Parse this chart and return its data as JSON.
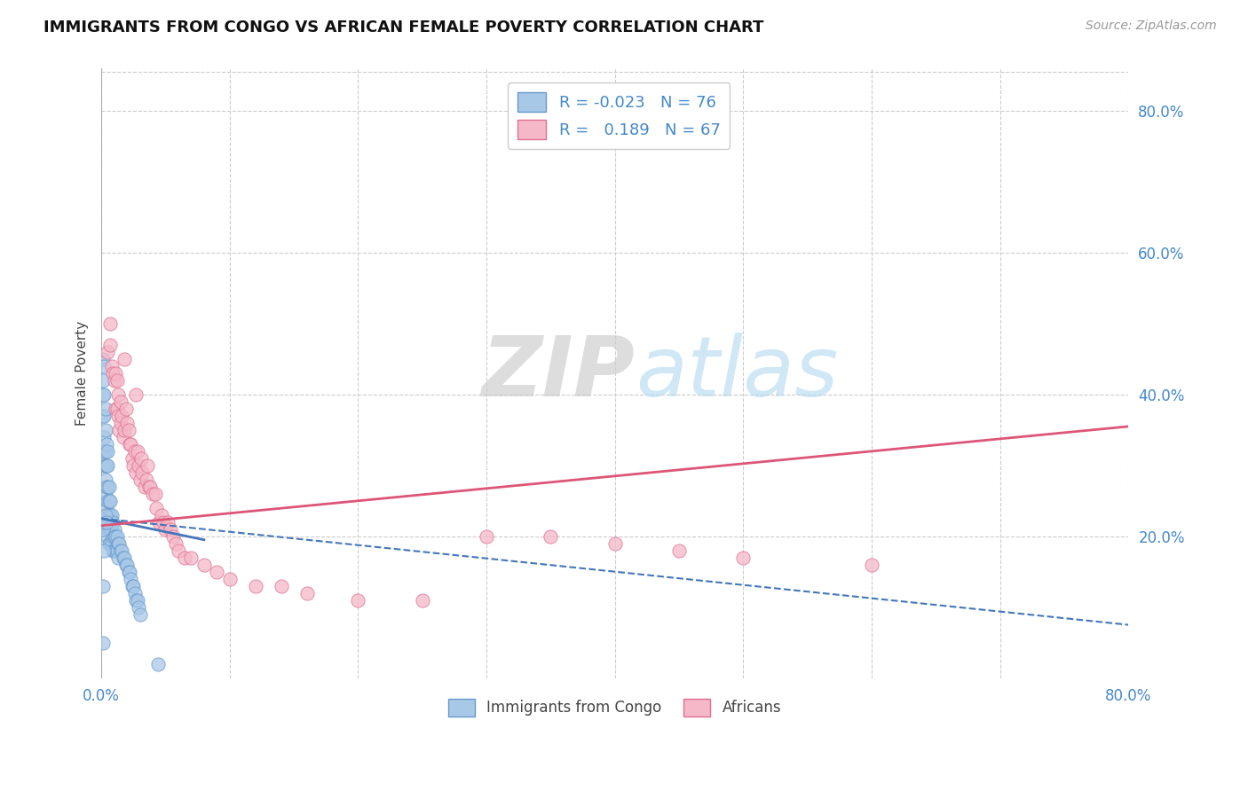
{
  "title": "IMMIGRANTS FROM CONGO VS AFRICAN FEMALE POVERTY CORRELATION CHART",
  "source": "Source: ZipAtlas.com",
  "ylabel": "Female Poverty",
  "xlim": [
    0.0,
    0.8
  ],
  "ylim": [
    0.0,
    0.86
  ],
  "congo_color": "#a8c8e8",
  "congo_edge": "#6699cc",
  "african_color": "#f5b8c8",
  "african_edge": "#dd7090",
  "trend_congo_color": "#4477bb",
  "trend_african_color": "#dd5577",
  "legend_label_congo": "R = -0.023   N = 76",
  "legend_label_african": "R =   0.189   N = 67",
  "legend_label_congo_bottom": "Immigrants from Congo",
  "legend_label_african_bottom": "Africans",
  "watermark_zip": "ZIP",
  "watermark_atlas": "atlas",
  "congo_x": [
    0.001,
    0.001,
    0.001,
    0.001,
    0.002,
    0.002,
    0.002,
    0.002,
    0.002,
    0.002,
    0.003,
    0.003,
    0.003,
    0.003,
    0.003,
    0.004,
    0.004,
    0.004,
    0.004,
    0.005,
    0.005,
    0.005,
    0.005,
    0.005,
    0.005,
    0.005,
    0.006,
    0.006,
    0.006,
    0.006,
    0.006,
    0.007,
    0.007,
    0.007,
    0.007,
    0.008,
    0.008,
    0.008,
    0.009,
    0.009,
    0.009,
    0.01,
    0.01,
    0.01,
    0.011,
    0.011,
    0.012,
    0.012,
    0.013,
    0.013,
    0.014,
    0.015,
    0.016,
    0.017,
    0.018,
    0.019,
    0.02,
    0.021,
    0.022,
    0.023,
    0.024,
    0.025,
    0.026,
    0.027,
    0.028,
    0.029,
    0.03,
    0.001,
    0.002,
    0.003,
    0.004,
    0.003,
    0.044,
    0.002,
    0.001,
    0.001
  ],
  "congo_y": [
    0.45,
    0.42,
    0.4,
    0.37,
    0.44,
    0.4,
    0.37,
    0.34,
    0.32,
    0.3,
    0.35,
    0.32,
    0.3,
    0.28,
    0.26,
    0.33,
    0.3,
    0.27,
    0.24,
    0.32,
    0.3,
    0.27,
    0.25,
    0.23,
    0.21,
    0.2,
    0.27,
    0.25,
    0.23,
    0.21,
    0.19,
    0.25,
    0.23,
    0.21,
    0.19,
    0.23,
    0.21,
    0.19,
    0.22,
    0.2,
    0.18,
    0.21,
    0.2,
    0.18,
    0.2,
    0.18,
    0.2,
    0.18,
    0.19,
    0.17,
    0.19,
    0.18,
    0.18,
    0.17,
    0.17,
    0.16,
    0.16,
    0.15,
    0.15,
    0.14,
    0.13,
    0.13,
    0.12,
    0.11,
    0.11,
    0.1,
    0.09,
    0.21,
    0.22,
    0.23,
    0.22,
    0.38,
    0.02,
    0.18,
    0.13,
    0.05
  ],
  "african_x": [
    0.005,
    0.007,
    0.007,
    0.008,
    0.009,
    0.01,
    0.011,
    0.011,
    0.012,
    0.012,
    0.013,
    0.013,
    0.014,
    0.015,
    0.015,
    0.016,
    0.017,
    0.018,
    0.018,
    0.019,
    0.02,
    0.021,
    0.022,
    0.023,
    0.024,
    0.025,
    0.026,
    0.027,
    0.027,
    0.028,
    0.029,
    0.03,
    0.031,
    0.032,
    0.034,
    0.035,
    0.036,
    0.037,
    0.038,
    0.04,
    0.042,
    0.043,
    0.045,
    0.047,
    0.048,
    0.05,
    0.052,
    0.054,
    0.056,
    0.058,
    0.06,
    0.065,
    0.07,
    0.08,
    0.09,
    0.1,
    0.12,
    0.14,
    0.16,
    0.2,
    0.25,
    0.3,
    0.35,
    0.4,
    0.45,
    0.5,
    0.6
  ],
  "african_y": [
    0.46,
    0.5,
    0.47,
    0.44,
    0.43,
    0.42,
    0.38,
    0.43,
    0.38,
    0.42,
    0.4,
    0.37,
    0.35,
    0.39,
    0.36,
    0.37,
    0.34,
    0.45,
    0.35,
    0.38,
    0.36,
    0.35,
    0.33,
    0.33,
    0.31,
    0.3,
    0.32,
    0.29,
    0.4,
    0.32,
    0.3,
    0.28,
    0.31,
    0.29,
    0.27,
    0.28,
    0.3,
    0.27,
    0.27,
    0.26,
    0.26,
    0.24,
    0.22,
    0.23,
    0.22,
    0.21,
    0.22,
    0.21,
    0.2,
    0.19,
    0.18,
    0.17,
    0.17,
    0.16,
    0.15,
    0.14,
    0.13,
    0.13,
    0.12,
    0.11,
    0.11,
    0.2,
    0.2,
    0.19,
    0.18,
    0.17,
    0.16
  ],
  "trend_congo_x0": 0.0,
  "trend_congo_x1": 0.08,
  "trend_congo_y0": 0.225,
  "trend_congo_y1": 0.195,
  "trend_congo_dash_x0": 0.0,
  "trend_congo_dash_x1": 0.8,
  "trend_congo_dash_y0": 0.225,
  "trend_congo_dash_y1": 0.075,
  "trend_african_x0": 0.0,
  "trend_african_x1": 0.8,
  "trend_african_y0": 0.215,
  "trend_african_y1": 0.355
}
